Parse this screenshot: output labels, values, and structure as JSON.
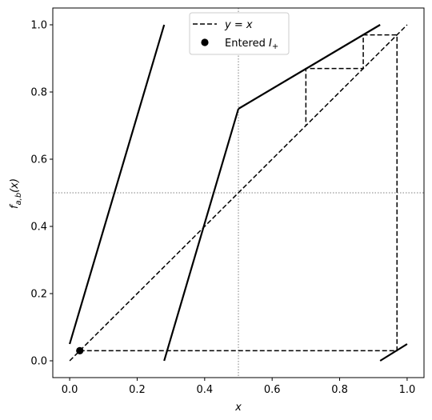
{
  "chart_data": {
    "type": "line",
    "xlabel": "x",
    "ylabel": "f_{a,b}(x)",
    "xlim": [
      -0.05,
      1.05
    ],
    "ylim": [
      -0.05,
      1.05
    ],
    "xticks": [
      0.0,
      0.2,
      0.4,
      0.6,
      0.8,
      1.0
    ],
    "yticks": [
      0.0,
      0.2,
      0.4,
      0.6,
      0.8,
      1.0
    ],
    "xtick_labels": [
      "0.0",
      "0.2",
      "0.4",
      "0.6",
      "0.8",
      "1.0"
    ],
    "ytick_labels": [
      "0.0",
      "0.2",
      "0.4",
      "0.6",
      "0.8",
      "1.0"
    ],
    "grid": false,
    "reference_lines": {
      "vertical_x": 0.5,
      "horizontal_y": 0.5,
      "style": "dotted",
      "color": "#808080"
    },
    "map_segments": [
      {
        "x": [
          0.0,
          0.28
        ],
        "y": [
          0.05,
          1.0
        ]
      },
      {
        "x": [
          0.28,
          0.5
        ],
        "y": [
          0.0,
          0.75
        ]
      },
      {
        "x": [
          0.5,
          0.92
        ],
        "y": [
          0.75,
          1.0
        ]
      },
      {
        "x": [
          0.92,
          1.0
        ],
        "y": [
          0.0,
          0.05
        ]
      }
    ],
    "series": [
      {
        "name": "y = x",
        "style": "dashed",
        "x": [
          0.0,
          1.0
        ],
        "y": [
          0.0,
          1.0
        ]
      }
    ],
    "cobweb": {
      "style": "dashed",
      "points": [
        [
          0.03,
          0.03
        ],
        [
          0.97,
          0.03
        ],
        [
          0.97,
          0.97
        ],
        [
          0.87,
          0.97
        ],
        [
          0.87,
          0.87
        ],
        [
          0.7,
          0.87
        ],
        [
          0.7,
          0.7
        ]
      ]
    },
    "marker_points": [
      {
        "name": "Entered I+",
        "x": 0.03,
        "y": 0.03
      }
    ],
    "legend": {
      "placement": "top-center",
      "entries": [
        {
          "label_prefix": "y = x",
          "kind": "dashed-line"
        },
        {
          "label_prefix": "Entered ",
          "label_math": "I",
          "label_sub": "+",
          "kind": "dot"
        }
      ]
    },
    "colors": {
      "line": "#000000",
      "reference": "#808080"
    }
  }
}
